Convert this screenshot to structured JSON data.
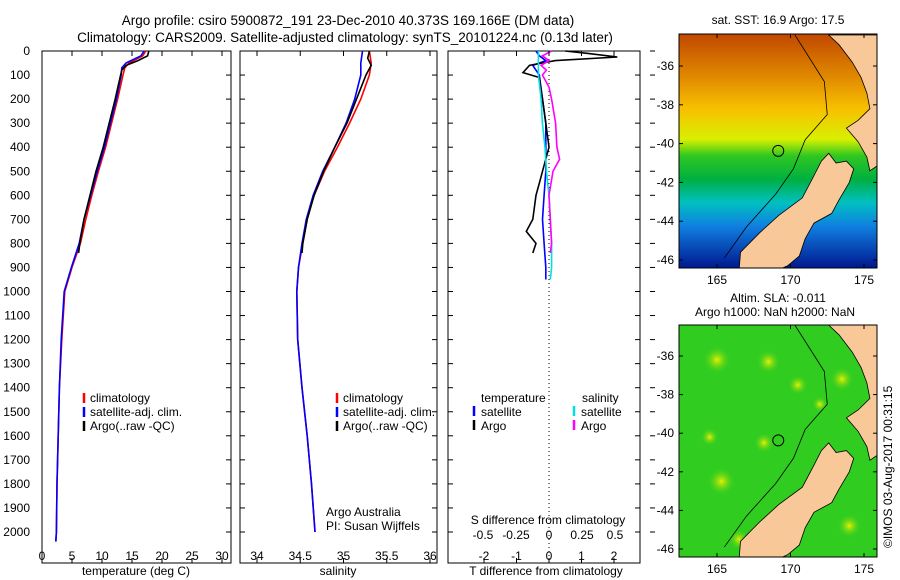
{
  "header": {
    "title_line1": "Argo profile: csiro 5900872_191 23-Dec-2010 40.373S 169.166E (DM data)",
    "title_line2": "Climatology: CARS2009. Satellite-adjusted climatology: synTS_20101224.nc (0.13d later)"
  },
  "colors": {
    "climatology": "#ff0000",
    "satellite": "#0000ff",
    "argo": "#000000",
    "sal_satellite": "#00e0e0",
    "sal_argo": "#ff00ff",
    "land": "#f8c898"
  },
  "chart_data": [
    {
      "type": "line",
      "name": "temperature-profile",
      "xlabel": "temperature (deg C)",
      "xlim": [
        -2,
        31
      ],
      "ylim": [
        0,
        2130
      ],
      "xticks": [
        "0",
        "5",
        "10",
        "15",
        "20",
        "25",
        "30"
      ],
      "yticks": [
        "0",
        "100",
        "200",
        "300",
        "400",
        "500",
        "600",
        "700",
        "800",
        "900",
        "1000",
        "1100",
        "1200",
        "1300",
        "1400",
        "1500",
        "1600",
        "1700",
        "1800",
        "1900",
        "2000"
      ],
      "legend": [
        "climatology",
        "satellite-adj. clim.",
        "Argo(..raw -QC)"
      ],
      "series": [
        {
          "name": "climatology",
          "color": "#ff0000",
          "depth": [
            0,
            20,
            50,
            70,
            100,
            200,
            300,
            400,
            500,
            600,
            700,
            800,
            900,
            1000,
            1200,
            1400,
            1600,
            1800,
            2000,
            2040
          ],
          "values": [
            17.3,
            16.8,
            14.5,
            13.8,
            13.5,
            12.6,
            11.6,
            10.6,
            9.4,
            8.3,
            7.3,
            6.4,
            5.0,
            3.8,
            3.3,
            2.9,
            2.7,
            2.5,
            2.4,
            2.3
          ]
        },
        {
          "name": "satellite-adj. clim.",
          "color": "#0000ff",
          "depth": [
            0,
            20,
            50,
            70,
            100,
            200,
            300,
            400,
            500,
            600,
            700,
            800,
            900,
            1000,
            1200,
            1400,
            1600,
            1800,
            2000,
            2040
          ],
          "values": [
            17.0,
            16.5,
            14.0,
            13.3,
            13.2,
            12.4,
            11.4,
            10.4,
            9.2,
            8.1,
            7.0,
            6.2,
            4.9,
            3.7,
            3.2,
            2.9,
            2.7,
            2.5,
            2.4,
            2.3
          ]
        },
        {
          "name": "Argo(..raw -QC)",
          "color": "#000000",
          "depth": [
            0,
            20,
            40,
            60,
            80,
            100,
            200,
            300,
            400,
            500,
            600,
            700,
            800,
            840
          ],
          "values": [
            17.8,
            17.6,
            16.0,
            14.0,
            13.3,
            13.1,
            12.2,
            11.2,
            10.2,
            9.0,
            8.0,
            7.0,
            6.3,
            6.1
          ]
        }
      ]
    },
    {
      "type": "line",
      "name": "salinity-profile",
      "xlabel": "salinity",
      "xlim": [
        33.8,
        36.05
      ],
      "ylim": [
        0,
        2130
      ],
      "xticks": [
        "34",
        "34.5",
        "35",
        "35.5",
        "36"
      ],
      "legend": [
        "climatology",
        "satellite-adj. clim.",
        "Argo(..raw -QC)"
      ],
      "annotation": [
        "Argo Australia",
        "PI: Susan Wijffels"
      ],
      "series": [
        {
          "name": "climatology",
          "color": "#ff0000",
          "depth": [
            0,
            50,
            100,
            200,
            300,
            400,
            500,
            600,
            700,
            800,
            900,
            1000,
            1200,
            1400,
            1600,
            1800,
            2000
          ],
          "values": [
            35.3,
            35.32,
            35.3,
            35.2,
            35.07,
            34.93,
            34.78,
            34.66,
            34.58,
            34.53,
            34.48,
            34.46,
            34.47,
            34.52,
            34.58,
            34.63,
            34.67
          ]
        },
        {
          "name": "satellite-adj. clim.",
          "color": "#0000ff",
          "depth": [
            0,
            50,
            100,
            200,
            300,
            400,
            500,
            600,
            700,
            800,
            900,
            1000,
            1200,
            1400,
            1600,
            1800,
            2000
          ],
          "values": [
            35.22,
            35.2,
            35.2,
            35.13,
            35.03,
            34.9,
            34.76,
            34.65,
            34.57,
            34.52,
            34.48,
            34.46,
            34.47,
            34.52,
            34.58,
            34.63,
            34.67
          ]
        },
        {
          "name": "Argo(..raw -QC)",
          "color": "#000000",
          "depth": [
            0,
            30,
            60,
            100,
            200,
            300,
            400,
            500,
            600,
            700,
            800,
            840
          ],
          "values": [
            35.3,
            35.28,
            35.32,
            35.26,
            35.15,
            35.04,
            34.9,
            34.77,
            34.66,
            34.58,
            34.53,
            34.52
          ]
        }
      ]
    },
    {
      "type": "line",
      "name": "difference-profile",
      "xlabel": "T difference from climatology",
      "x2label": "S difference from climatology",
      "xlim": [
        -3.1,
        2.8
      ],
      "ylim": [
        0,
        2130
      ],
      "xticks": [
        "-2",
        "-1",
        "0",
        "1",
        "2"
      ],
      "x2ticks": [
        "-0.5",
        "-0.25",
        "0",
        "0.25",
        "0.5"
      ],
      "legend": {
        "temperature_title": "temperature",
        "salinity_title": "salinity",
        "satellite": "satellite",
        "argo": "Argo"
      },
      "series": [
        {
          "name": "T satellite",
          "color": "#0000ff",
          "depth": [
            0,
            20,
            40,
            60,
            100,
            200,
            300,
            400,
            500,
            600,
            700,
            800,
            900,
            950
          ],
          "values": [
            -0.4,
            -0.3,
            -0.1,
            -0.5,
            -0.3,
            -0.2,
            -0.1,
            -0.1,
            -0.1,
            -0.15,
            -0.2,
            -0.15,
            -0.1,
            -0.1
          ]
        },
        {
          "name": "T Argo",
          "color": "#000000",
          "depth": [
            0,
            10,
            25,
            40,
            60,
            90,
            110,
            200,
            300,
            400,
            500,
            550,
            600,
            700,
            750,
            800,
            840
          ],
          "values": [
            0.5,
            1.2,
            2.1,
            0.2,
            -0.6,
            -0.8,
            -0.3,
            -0.2,
            -0.1,
            0.0,
            -0.2,
            -0.3,
            -0.4,
            -0.5,
            -0.7,
            -0.4,
            -0.5
          ]
        },
        {
          "name": "S satellite",
          "color": "#00e0e0",
          "depth": [
            0,
            100,
            200,
            300,
            400,
            500,
            600,
            700,
            800,
            900,
            950
          ],
          "values": [
            -0.08,
            -0.08,
            -0.06,
            -0.05,
            -0.03,
            -0.02,
            0.0,
            0.01,
            0.02,
            0.02,
            0.01
          ]
        },
        {
          "name": "S Argo",
          "color": "#ff00ff",
          "depth": [
            0,
            20,
            40,
            60,
            80,
            100,
            150,
            200,
            300,
            400,
            450,
            500,
            600,
            700,
            800,
            840
          ],
          "values": [
            0.02,
            -0.05,
            0.0,
            -0.06,
            -0.02,
            -0.05,
            0.0,
            0.02,
            0.05,
            0.06,
            0.08,
            0.03,
            0.0,
            0.01,
            0.02,
            0.01
          ]
        }
      ]
    }
  ],
  "maps": [
    {
      "title": "sat. SST: 16.9 Argo: 17.5",
      "type": "sst"
    },
    {
      "title": "Altim. SLA: -0.011",
      "subtitle": "Argo h1000: NaN h2000: NaN",
      "type": "sla"
    }
  ],
  "map_axes": {
    "lon_ticks": [
      "165",
      "170",
      "175"
    ],
    "lat_ticks": [
      "-36",
      "-38",
      "-40",
      "-42",
      "-44",
      "-46"
    ],
    "lon_range": [
      162.4,
      176.0
    ],
    "lat_range": [
      -34.4,
      -46.5
    ]
  },
  "argo_position": {
    "lon": 169.166,
    "lat": -40.373
  },
  "coast": {
    "north_island": [
      [
        172.6,
        -34.4
      ],
      [
        173.3,
        -34.9
      ],
      [
        174.2,
        -35.8
      ],
      [
        174.8,
        -36.6
      ],
      [
        175.2,
        -37.4
      ],
      [
        175.4,
        -38.2
      ],
      [
        174.6,
        -38.8
      ],
      [
        173.8,
        -39.2
      ],
      [
        174.6,
        -39.9
      ],
      [
        175.2,
        -40.7
      ],
      [
        175.4,
        -41.4
      ],
      [
        176,
        -41.1
      ],
      [
        176,
        -34.4
      ]
    ],
    "south_island": [
      [
        172.6,
        -40.5
      ],
      [
        173.1,
        -41.0
      ],
      [
        173.8,
        -40.9
      ],
      [
        174.3,
        -41.3
      ],
      [
        174.0,
        -42.0
      ],
      [
        173.3,
        -42.9
      ],
      [
        172.8,
        -43.6
      ],
      [
        171.6,
        -44.1
      ],
      [
        171.0,
        -44.9
      ],
      [
        170.6,
        -45.8
      ],
      [
        169.8,
        -46.3
      ],
      [
        168.9,
        -46.6
      ],
      [
        166.5,
        -46.6
      ],
      [
        166.6,
        -45.6
      ],
      [
        167.9,
        -44.6
      ],
      [
        169.2,
        -43.7
      ],
      [
        170.8,
        -42.8
      ],
      [
        171.5,
        -41.8
      ],
      [
        172.1,
        -40.9
      ]
    ]
  },
  "footer": {
    "copyright": "©IMOS 03-Aug-2017 00:31:15"
  }
}
